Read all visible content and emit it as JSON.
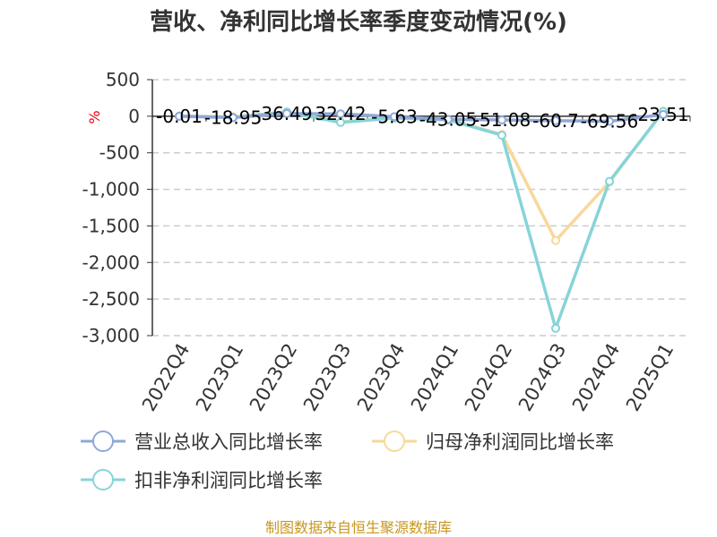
{
  "chart_data": {
    "type": "line",
    "title": "营收、净利同比增长率季度变动情况(%)",
    "unit": "%",
    "categories": [
      "2022Q4",
      "2023Q1",
      "2023Q2",
      "2023Q3",
      "2023Q4",
      "2024Q1",
      "2024Q2",
      "2024Q3",
      "2024Q4",
      "2025Q1"
    ],
    "ylim": [
      -3000,
      500
    ],
    "yticks": [
      500,
      0,
      -500,
      -1000,
      -1500,
      -2000,
      -2500,
      -3000
    ],
    "ytick_labels": [
      "500",
      "0",
      "-500",
      "-1,000",
      "-1,500",
      "-2,000",
      "-2,500",
      "-3,000"
    ],
    "grid": true,
    "legend_position": "bottom",
    "series": [
      {
        "name": "营业总收入同比增长率",
        "color": "#8fa8d8",
        "values": [
          -0.01,
          -18.95,
          36.49,
          32.42,
          -5.63,
          -43.05,
          -51.08,
          -60.7,
          -69.56,
          23.51
        ],
        "labels": [
          "-0.01",
          "-18.95",
          "36.49",
          "32.42",
          "-5.63",
          "-43.05",
          "-51.08",
          "-60.7",
          "-69.56",
          "23.51"
        ]
      },
      {
        "name": "归母净利润同比增长率",
        "color": "#f8d89a",
        "values": [
          3,
          -10,
          60,
          -80,
          -20,
          -45,
          -250,
          -1700,
          -900,
          70
        ]
      },
      {
        "name": "扣非净利润同比增长率",
        "color": "#86d4d8",
        "values": [
          2,
          -15,
          55,
          -85,
          -25,
          -50,
          -260,
          -2900,
          -890,
          65
        ]
      }
    ]
  },
  "source": "制图数据来自恒生聚源数据库"
}
